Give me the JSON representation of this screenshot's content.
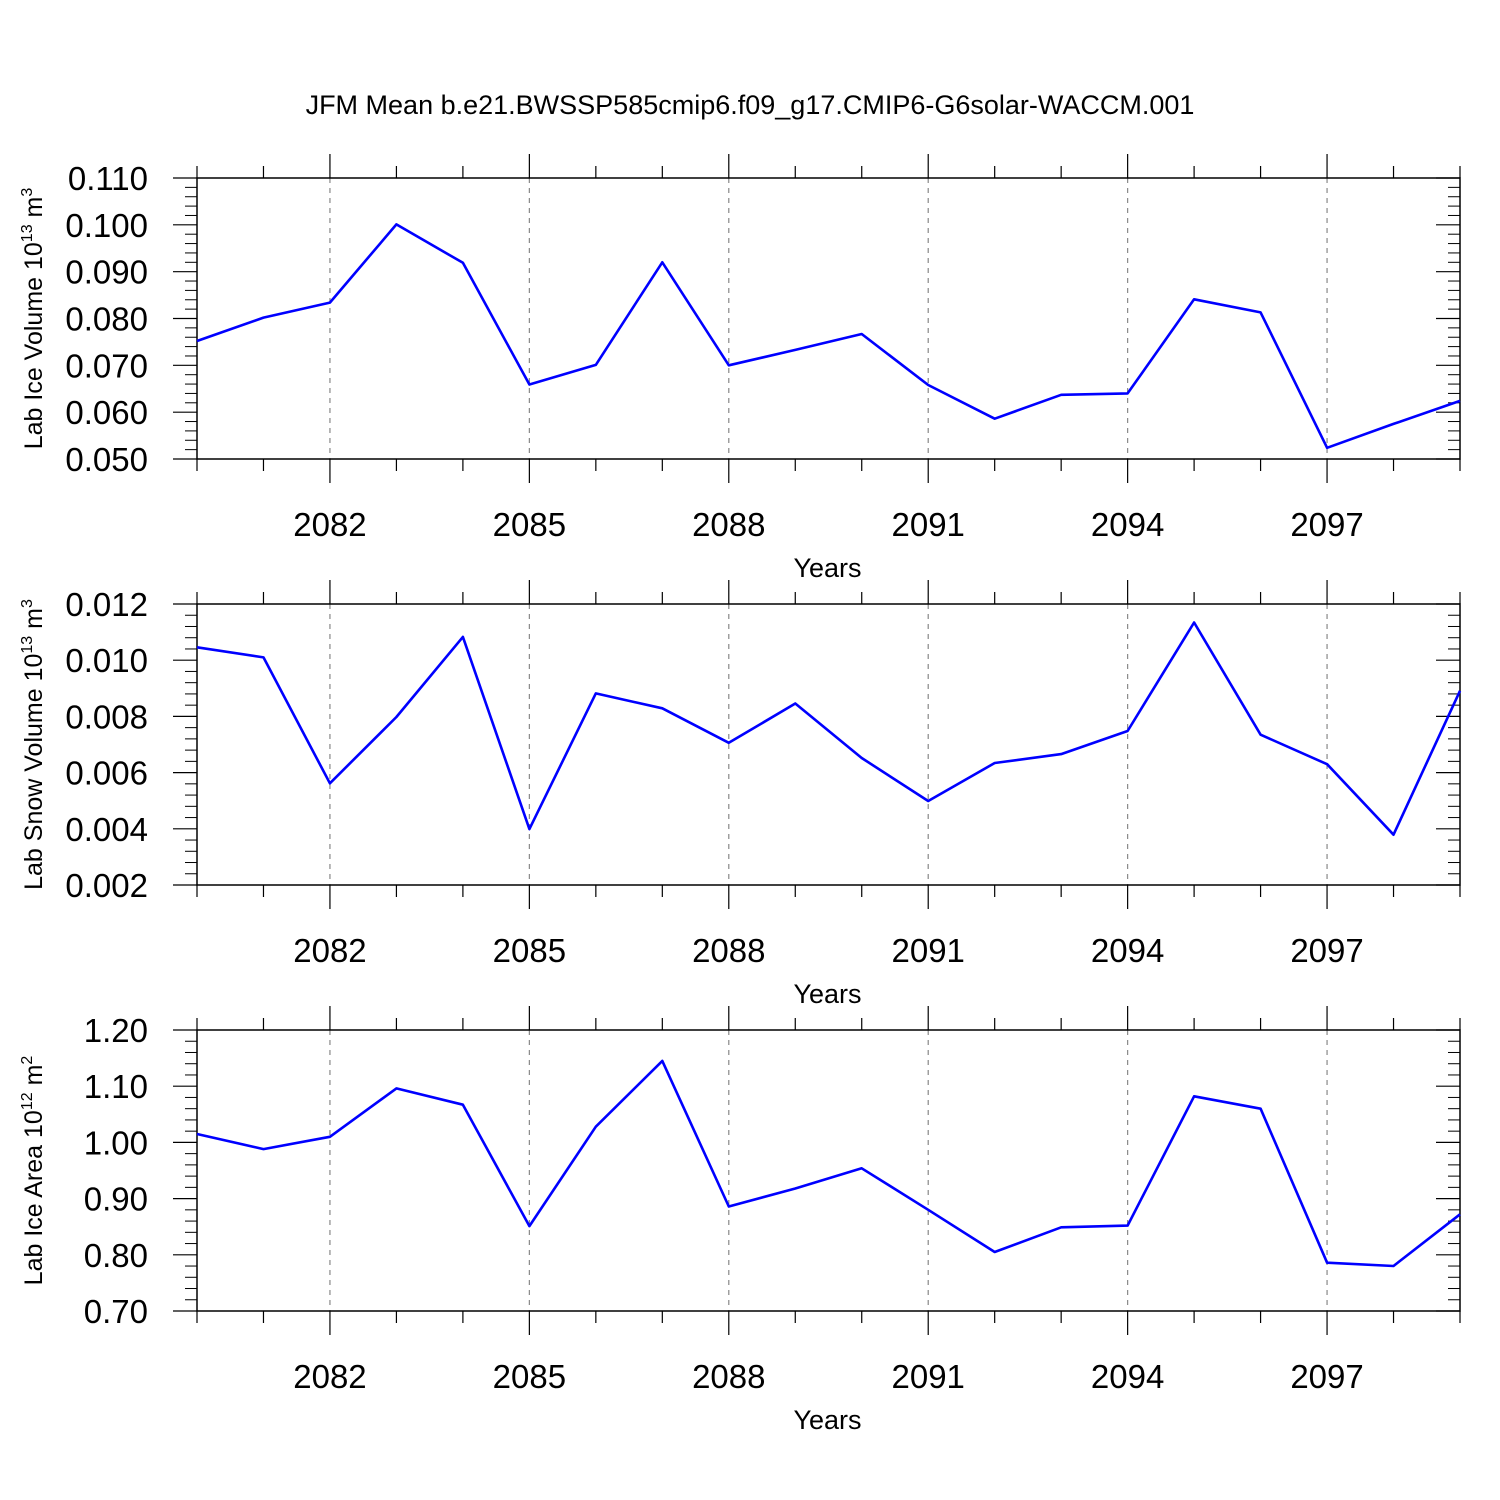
{
  "figure": {
    "title": "JFM Mean b.e21.BWSSP585cmip6.f09_g17.CMIP6-G6solar-WACCM.001",
    "line_color": "#0000ff",
    "grid_color": "#888888"
  },
  "chart_data": [
    {
      "type": "line",
      "title": "JFM Mean b.e21.BWSSP585cmip6.f09_g17.CMIP6-G6solar-WACCM.001",
      "ylabel_main": "Lab Ice Volume 10",
      "ylabel_exp": "13",
      "ylabel_unit": " m",
      "ylabel_unit_exp": "3",
      "xlabel": "Years",
      "x": [
        2080,
        2081,
        2082,
        2083,
        2084,
        2085,
        2086,
        2087,
        2088,
        2089,
        2090,
        2091,
        2092,
        2093,
        2094,
        2095,
        2096,
        2097,
        2098,
        2099
      ],
      "values": [
        0.0752,
        0.0802,
        0.0834,
        0.1001,
        0.0919,
        0.0659,
        0.0701,
        0.092,
        0.07,
        0.0733,
        0.0767,
        0.0658,
        0.0586,
        0.0637,
        0.064,
        0.0841,
        0.0813,
        0.0524,
        0.0575,
        0.0624
      ],
      "xlim": [
        2080,
        2099
      ],
      "ylim": [
        0.05,
        0.11
      ],
      "yticks": [
        "0.050",
        "0.060",
        "0.070",
        "0.080",
        "0.090",
        "0.100",
        "0.110"
      ],
      "xticks": [
        "2082",
        "2085",
        "2088",
        "2091",
        "2094",
        "2097"
      ],
      "grid": "vertical dashed at major x ticks"
    },
    {
      "type": "line",
      "ylabel_main": "Lab Snow Volume 10",
      "ylabel_exp": "13",
      "ylabel_unit": " m",
      "ylabel_unit_exp": "3",
      "xlabel": "Years",
      "x": [
        2080,
        2081,
        2082,
        2083,
        2084,
        2085,
        2086,
        2087,
        2088,
        2089,
        2090,
        2091,
        2092,
        2093,
        2094,
        2095,
        2096,
        2097,
        2098,
        2099
      ],
      "values": [
        0.01046,
        0.0101,
        0.00562,
        0.00798,
        0.01083,
        0.00399,
        0.00882,
        0.00829,
        0.00706,
        0.00846,
        0.00652,
        0.00499,
        0.00634,
        0.00666,
        0.00748,
        0.01134,
        0.00735,
        0.0063,
        0.00379,
        0.00891
      ],
      "xlim": [
        2080,
        2099
      ],
      "ylim": [
        0.002,
        0.012
      ],
      "yticks": [
        "0.002",
        "0.004",
        "0.006",
        "0.008",
        "0.010",
        "0.012"
      ],
      "xticks": [
        "2082",
        "2085",
        "2088",
        "2091",
        "2094",
        "2097"
      ],
      "grid": "vertical dashed at major x ticks"
    },
    {
      "type": "line",
      "ylabel_main": "Lab Ice Area 10",
      "ylabel_exp": "12",
      "ylabel_unit": " m",
      "ylabel_unit_exp": "2",
      "xlabel": "Years",
      "x": [
        2080,
        2081,
        2082,
        2083,
        2084,
        2085,
        2086,
        2087,
        2088,
        2089,
        2090,
        2091,
        2092,
        2093,
        2094,
        2095,
        2096,
        2097,
        2098,
        2099
      ],
      "values": [
        1.015,
        0.988,
        1.01,
        1.096,
        1.067,
        0.851,
        1.028,
        1.145,
        0.886,
        0.918,
        0.954,
        0.88,
        0.805,
        0.849,
        0.852,
        1.082,
        1.06,
        0.786,
        0.78,
        0.872
      ],
      "xlim": [
        2080,
        2099
      ],
      "ylim": [
        0.7,
        1.2
      ],
      "yticks": [
        "0.70",
        "0.80",
        "0.90",
        "1.00",
        "1.10",
        "1.20"
      ],
      "xticks": [
        "2082",
        "2085",
        "2088",
        "2091",
        "2094",
        "2097"
      ],
      "grid": "vertical dashed at major x ticks"
    }
  ]
}
